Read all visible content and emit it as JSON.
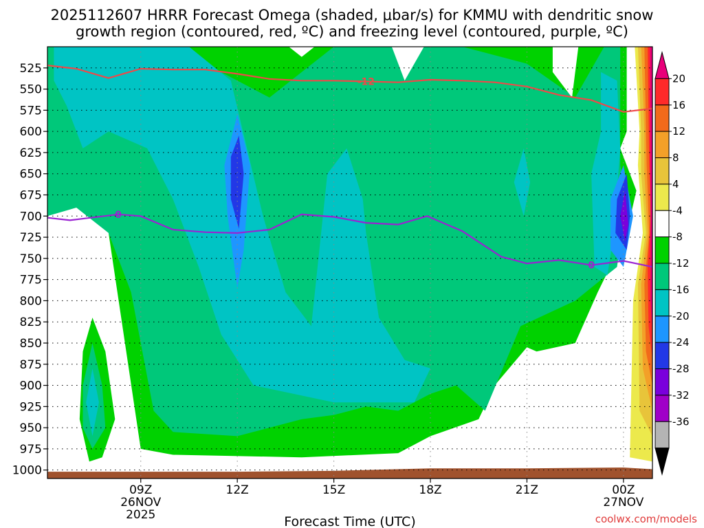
{
  "chart_data": {
    "type": "contour",
    "title_line1": "2025112607 HRRR Forecast Omega (shaded, μbar/s) for KMMU with dendritic snow",
    "title_line2": "growth region (contoured, red, ºC) and freezing level (contoured, purple, ºC)",
    "xlabel": "Forecast Time (UTC)",
    "credit": "coolwx.com/models",
    "y_axis": {
      "reversed": true,
      "ylim": [
        1010,
        500
      ],
      "ticks": [
        525,
        550,
        575,
        600,
        625,
        650,
        675,
        700,
        725,
        750,
        775,
        800,
        825,
        850,
        875,
        900,
        925,
        950,
        975,
        1000
      ]
    },
    "x_axis": {
      "xlim": [
        6.1,
        24.9
      ],
      "ticks": [
        {
          "hour": 9,
          "lines": [
            "09Z",
            "26NOV",
            "2025"
          ]
        },
        {
          "hour": 12,
          "lines": [
            "12Z"
          ]
        },
        {
          "hour": 15,
          "lines": [
            "15Z"
          ]
        },
        {
          "hour": 18,
          "lines": [
            "18Z"
          ]
        },
        {
          "hour": 21,
          "lines": [
            "21Z"
          ]
        },
        {
          "hour": 24,
          "lines": [
            "00Z",
            "27NOV"
          ]
        }
      ]
    },
    "grid": "dotted",
    "colorbar": {
      "labels": [
        "20",
        "16",
        "12",
        "8",
        "4",
        "-4",
        "-8",
        "-12",
        "-16",
        "-20",
        "-24",
        "-28",
        "-32",
        "-36"
      ],
      "colors": [
        "#e8007a",
        "#ff2a2a",
        "#f26a1a",
        "#f3a028",
        "#e8c43a",
        "#ece94c",
        "#ffffff",
        "#00d200",
        "#00c87a",
        "#00c4c4",
        "#1e96ff",
        "#2238e6",
        "#7a00dc",
        "#a000c8",
        "#b4b4b4",
        "#000000"
      ]
    },
    "dgz_line": {
      "label": "-12",
      "color": "#f04848",
      "points": [
        [
          6.1,
          522
        ],
        [
          7,
          526
        ],
        [
          8,
          537
        ],
        [
          9,
          526
        ],
        [
          10,
          527
        ],
        [
          11,
          527
        ],
        [
          12,
          532
        ],
        [
          13,
          538
        ],
        [
          14,
          540
        ],
        [
          15,
          540
        ],
        [
          16,
          541
        ],
        [
          17,
          542
        ],
        [
          18,
          539
        ],
        [
          19,
          540
        ],
        [
          20,
          542
        ],
        [
          21,
          547
        ],
        [
          22,
          557
        ],
        [
          23,
          563
        ],
        [
          24,
          577
        ],
        [
          24.9,
          573
        ]
      ]
    },
    "freezing_line": {
      "label": "0",
      "color": "#9a22d2",
      "points": [
        [
          6.1,
          702
        ],
        [
          6.8,
          705
        ],
        [
          8.3,
          698
        ],
        [
          9,
          700
        ],
        [
          10,
          716
        ],
        [
          11,
          719
        ],
        [
          12,
          720
        ],
        [
          13,
          716
        ],
        [
          14,
          698
        ],
        [
          15,
          701
        ],
        [
          16,
          708
        ],
        [
          17,
          710
        ],
        [
          17.9,
          700
        ],
        [
          19,
          718
        ],
        [
          20.2,
          748
        ],
        [
          21,
          756
        ],
        [
          22,
          752
        ],
        [
          23,
          758
        ],
        [
          24,
          753
        ],
        [
          24.9,
          760
        ]
      ]
    },
    "omega_regions": [
      {
        "level": -4,
        "color": "#00d200",
        "points": [
          [
            6.1,
            500
          ],
          [
            24.1,
            500
          ],
          [
            24.1,
            600
          ],
          [
            23.9,
            620
          ],
          [
            24.4,
            670
          ],
          [
            24.1,
            720
          ],
          [
            23.2,
            790
          ],
          [
            22.5,
            850
          ],
          [
            21.3,
            860
          ],
          [
            21,
            855
          ],
          [
            20,
            900
          ],
          [
            19.5,
            940
          ],
          [
            18,
            960
          ],
          [
            17,
            980
          ],
          [
            14,
            985
          ],
          [
            10,
            982
          ],
          [
            9,
            975
          ],
          [
            8,
            720
          ],
          [
            6.6,
            640
          ],
          [
            6.1,
            620
          ]
        ]
      },
      {
        "level": -4,
        "color": "#00d200",
        "points": [
          [
            7.5,
            820
          ],
          [
            7.9,
            860
          ],
          [
            8.2,
            940
          ],
          [
            7.8,
            985
          ],
          [
            7.4,
            990
          ],
          [
            7.1,
            940
          ],
          [
            7.2,
            860
          ]
        ]
      },
      {
        "level": -8,
        "color": "#00c87a",
        "points": [
          [
            6.1,
            500
          ],
          [
            10,
            500
          ],
          [
            11,
            520
          ],
          [
            13,
            560
          ],
          [
            14,
            530
          ],
          [
            15,
            500
          ],
          [
            19,
            500
          ],
          [
            21,
            520
          ],
          [
            22.5,
            560
          ],
          [
            23.4,
            500
          ],
          [
            23.9,
            500
          ],
          [
            23.9,
            640
          ],
          [
            24.1,
            680
          ],
          [
            23.8,
            760
          ],
          [
            22.5,
            800
          ],
          [
            20.8,
            830
          ],
          [
            19.7,
            930
          ],
          [
            18.8,
            900
          ],
          [
            18,
            910
          ],
          [
            17,
            930
          ],
          [
            16,
            925
          ],
          [
            15,
            935
          ],
          [
            14,
            940
          ],
          [
            12,
            960
          ],
          [
            10,
            955
          ],
          [
            9.4,
            930
          ],
          [
            8.7,
            790
          ],
          [
            8,
            720
          ],
          [
            7,
            690
          ],
          [
            6.1,
            700
          ]
        ]
      },
      {
        "level": -8,
        "color": "#00c87a",
        "points": [
          [
            7.5,
            850
          ],
          [
            7.8,
            900
          ],
          [
            7.9,
            950
          ],
          [
            7.5,
            975
          ],
          [
            7.2,
            950
          ],
          [
            7.2,
            900
          ]
        ]
      },
      {
        "level": -12,
        "color": "#00c4c4",
        "points": [
          [
            6.3,
            500
          ],
          [
            10.5,
            500
          ],
          [
            11.8,
            540
          ],
          [
            12.8,
            700
          ],
          [
            13.5,
            790
          ],
          [
            14.3,
            830
          ],
          [
            14.8,
            650
          ],
          [
            15.4,
            620
          ],
          [
            15.9,
            680
          ],
          [
            16,
            720
          ],
          [
            16.4,
            820
          ],
          [
            17.2,
            870
          ],
          [
            18,
            880
          ],
          [
            17.5,
            920
          ],
          [
            15,
            920
          ],
          [
            12.5,
            900
          ],
          [
            11.5,
            840
          ],
          [
            10.8,
            760
          ],
          [
            10,
            680
          ],
          [
            9.2,
            620
          ],
          [
            8,
            600
          ],
          [
            7.2,
            620
          ],
          [
            6.7,
            570
          ],
          [
            6.3,
            540
          ]
        ]
      },
      {
        "level": -12,
        "color": "#00c4c4",
        "points": [
          [
            20.9,
            620
          ],
          [
            21.1,
            660
          ],
          [
            20.9,
            700
          ],
          [
            20.6,
            660
          ]
        ]
      },
      {
        "level": -12,
        "color": "#00c4c4",
        "points": [
          [
            23.3,
            530
          ],
          [
            23.8,
            540
          ],
          [
            23.9,
            620
          ],
          [
            23.7,
            720
          ],
          [
            23.5,
            770
          ],
          [
            23.1,
            760
          ],
          [
            23,
            650
          ],
          [
            23.3,
            600
          ]
        ]
      },
      {
        "level": -12,
        "color": "#00c4c4",
        "points": [
          [
            7.5,
            880
          ],
          [
            7.7,
            920
          ],
          [
            7.5,
            960
          ],
          [
            7.3,
            920
          ]
        ]
      },
      {
        "level": -16,
        "color": "#1e96ff",
        "points": [
          [
            12,
            580
          ],
          [
            12.4,
            640
          ],
          [
            12.2,
            740
          ],
          [
            12,
            785
          ],
          [
            11.7,
            700
          ],
          [
            11.6,
            640
          ]
        ]
      },
      {
        "level": -16,
        "color": "#1e96ff",
        "points": [
          [
            24,
            640
          ],
          [
            24.3,
            700
          ],
          [
            24,
            760
          ],
          [
            23.6,
            740
          ],
          [
            23.6,
            680
          ]
        ]
      },
      {
        "level": -20,
        "color": "#2238e6",
        "points": [
          [
            12.05,
            605
          ],
          [
            12.2,
            650
          ],
          [
            12.05,
            715
          ],
          [
            11.8,
            680
          ],
          [
            11.8,
            630
          ]
        ]
      },
      {
        "level": -20,
        "color": "#2238e6",
        "points": [
          [
            24.1,
            650
          ],
          [
            24.2,
            700
          ],
          [
            24.1,
            740
          ],
          [
            23.75,
            720
          ],
          [
            23.8,
            680
          ]
        ]
      },
      {
        "level": -24,
        "color": "#7a00dc",
        "points": [
          [
            24.05,
            670
          ],
          [
            24.15,
            710
          ],
          [
            24.05,
            730
          ],
          [
            23.9,
            700
          ]
        ]
      },
      {
        "level": 4,
        "color": "#ece94c",
        "points": [
          [
            24.35,
            500
          ],
          [
            24.9,
            500
          ],
          [
            24.9,
            990
          ],
          [
            24.2,
            985
          ],
          [
            24.3,
            800
          ],
          [
            24.6,
            720
          ],
          [
            24.45,
            640
          ],
          [
            24.5,
            600
          ]
        ]
      },
      {
        "level": 8,
        "color": "#e8c43a",
        "points": [
          [
            24.45,
            500
          ],
          [
            24.9,
            500
          ],
          [
            24.9,
            960
          ],
          [
            24.5,
            930
          ],
          [
            24.45,
            780
          ],
          [
            24.7,
            720
          ],
          [
            24.55,
            650
          ],
          [
            24.55,
            600
          ]
        ]
      },
      {
        "level": 12,
        "color": "#f3a028",
        "points": [
          [
            24.55,
            500
          ],
          [
            24.9,
            500
          ],
          [
            24.9,
            930
          ],
          [
            24.6,
            880
          ],
          [
            24.55,
            780
          ],
          [
            24.75,
            720
          ],
          [
            24.65,
            650
          ],
          [
            24.65,
            600
          ]
        ]
      },
      {
        "level": 16,
        "color": "#f26a1a",
        "points": [
          [
            24.65,
            500
          ],
          [
            24.9,
            500
          ],
          [
            24.9,
            900
          ],
          [
            24.7,
            860
          ],
          [
            24.65,
            780
          ],
          [
            24.8,
            720
          ],
          [
            24.72,
            640
          ]
        ]
      },
      {
        "level": 20,
        "color": "#ff2a2a",
        "points": [
          [
            24.75,
            500
          ],
          [
            24.9,
            500
          ],
          [
            24.9,
            870
          ],
          [
            24.78,
            830
          ],
          [
            24.75,
            760
          ],
          [
            24.85,
            700
          ],
          [
            24.8,
            640
          ]
        ]
      },
      {
        "level": 24,
        "color": "#e8007a",
        "points": [
          [
            24.82,
            500
          ],
          [
            24.9,
            500
          ],
          [
            24.9,
            840
          ],
          [
            24.84,
            800
          ],
          [
            24.84,
            700
          ]
        ]
      },
      {
        "level": 0,
        "color": "#ffffff",
        "points": [
          [
            13.6,
            500
          ],
          [
            14.4,
            500
          ],
          [
            14,
            512
          ]
        ]
      },
      {
        "level": 0,
        "color": "#ffffff",
        "points": [
          [
            16.8,
            500
          ],
          [
            17.8,
            500
          ],
          [
            17.2,
            540
          ]
        ]
      },
      {
        "level": 0,
        "color": "#ffffff",
        "points": [
          [
            21.8,
            500
          ],
          [
            22.6,
            500
          ],
          [
            22.4,
            560
          ],
          [
            21.8,
            530
          ]
        ]
      }
    ],
    "terrain": {
      "color": "#a0522d",
      "points": [
        [
          6.1,
          1002
        ],
        [
          12,
          1002
        ],
        [
          15,
          1001
        ],
        [
          18,
          998
        ],
        [
          21,
          998
        ],
        [
          24,
          997
        ],
        [
          24.9,
          999
        ]
      ]
    }
  }
}
